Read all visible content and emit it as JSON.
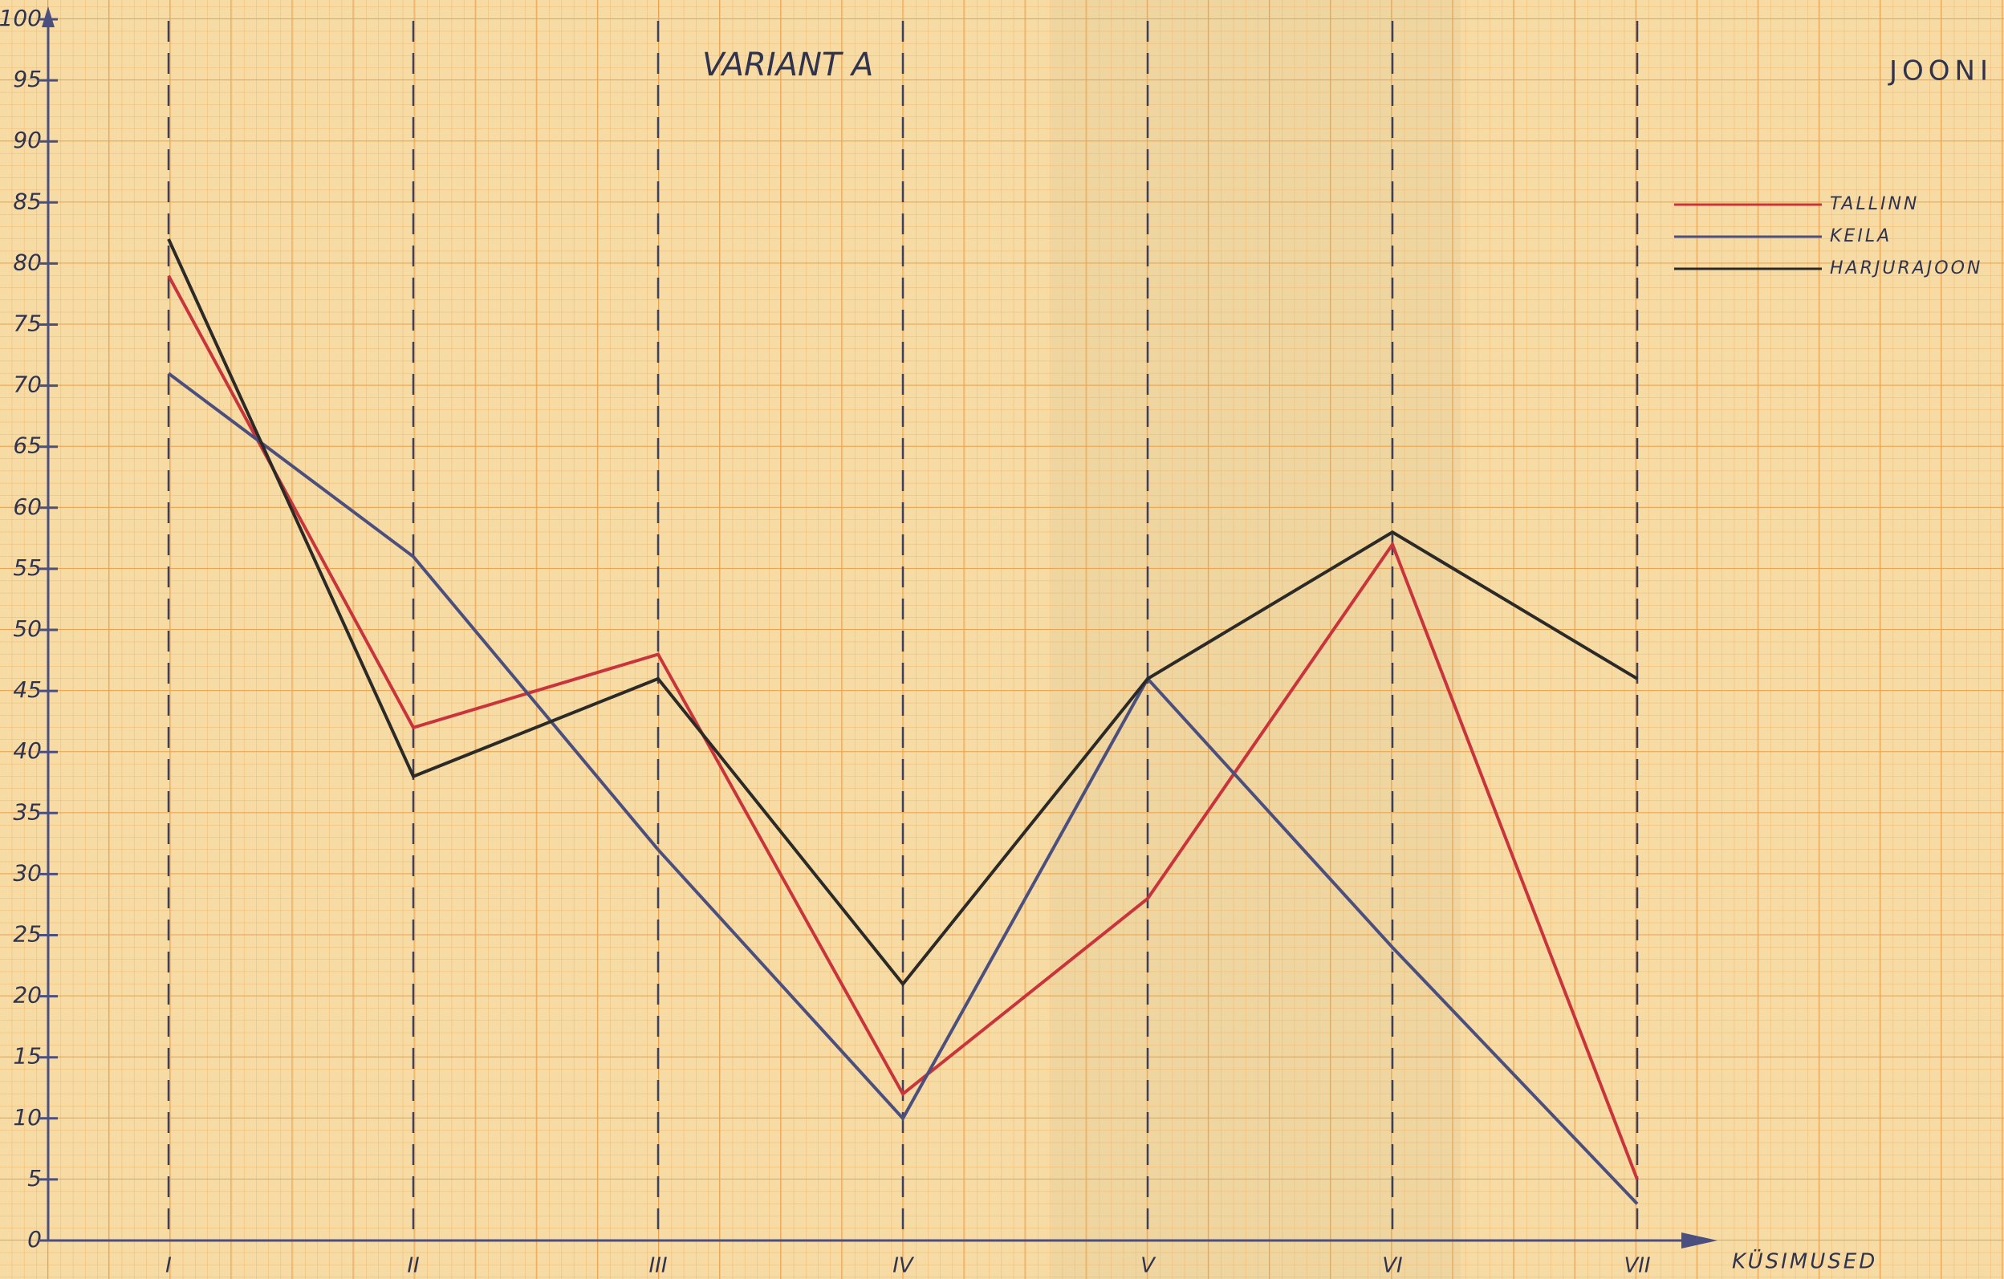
{
  "chart_data": {
    "type": "line",
    "title": "VARIANT A",
    "subtitle": "JOONI",
    "x_label": "KÜSIMUSED",
    "categories": [
      "I",
      "II",
      "III",
      "IV",
      "V",
      "VI",
      "VII"
    ],
    "series": [
      {
        "name": "TALLINN",
        "color": "#c9343c",
        "values": [
          79,
          42,
          48,
          12,
          28,
          57,
          5
        ]
      },
      {
        "name": "KEILA",
        "color": "#4b4f80",
        "values": [
          71,
          56,
          32,
          10,
          46,
          24,
          3
        ]
      },
      {
        "name": "HARJURAJOON",
        "color": "#2b2a28",
        "values": [
          82,
          38,
          46,
          21,
          46,
          58,
          46
        ]
      }
    ],
    "ylim": [
      0,
      100
    ],
    "yticks": [
      0,
      5,
      10,
      15,
      20,
      25,
      30,
      35,
      40,
      45,
      50,
      55,
      60,
      65,
      70,
      75,
      80,
      85,
      90,
      95,
      100
    ],
    "legend": "top-right",
    "grid": true
  }
}
